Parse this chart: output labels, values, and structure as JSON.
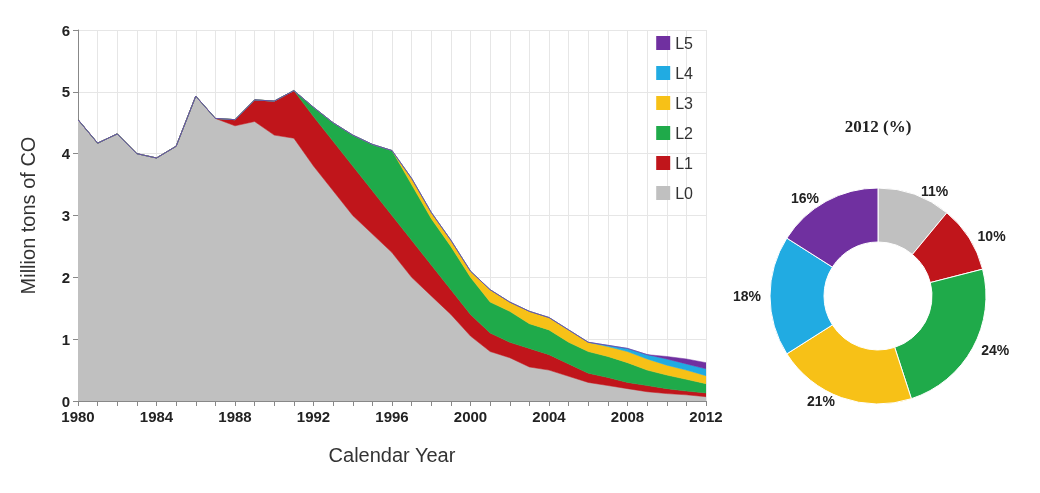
{
  "chart_data": [
    {
      "type": "area",
      "stacked": true,
      "xlabel": "Calendar Year",
      "ylabel": "Million tons of CO",
      "x": [
        1980,
        1981,
        1982,
        1983,
        1984,
        1985,
        1986,
        1987,
        1988,
        1989,
        1990,
        1991,
        1992,
        1993,
        1994,
        1995,
        1996,
        1997,
        1998,
        1999,
        2000,
        2001,
        2002,
        2003,
        2004,
        2005,
        2006,
        2007,
        2008,
        2009,
        2010,
        2011,
        2012
      ],
      "series": [
        {
          "name": "L0",
          "color": "#c0c0c0",
          "values": [
            4.55,
            4.17,
            4.32,
            4.0,
            3.93,
            4.12,
            4.93,
            4.57,
            4.45,
            4.52,
            4.3,
            4.25,
            3.8,
            3.4,
            3.0,
            2.7,
            2.4,
            2.0,
            1.7,
            1.4,
            1.05,
            0.8,
            0.7,
            0.55,
            0.5,
            0.4,
            0.3,
            0.25,
            0.2,
            0.15,
            0.12,
            0.1,
            0.07
          ]
        },
        {
          "name": "L1",
          "color": "#c0151b",
          "values": [
            0,
            0,
            0,
            0,
            0,
            0,
            0,
            0,
            0.1,
            0.35,
            0.55,
            0.77,
            0.8,
            0.8,
            0.8,
            0.7,
            0.6,
            0.6,
            0.5,
            0.4,
            0.35,
            0.3,
            0.25,
            0.3,
            0.25,
            0.2,
            0.15,
            0.13,
            0.1,
            0.1,
            0.08,
            0.06,
            0.06
          ]
        },
        {
          "name": "L2",
          "color": "#1faa4a",
          "values": [
            0,
            0,
            0,
            0,
            0,
            0,
            0,
            0,
            0,
            0,
            0,
            0,
            0.15,
            0.3,
            0.5,
            0.75,
            1.05,
            0.9,
            0.75,
            0.7,
            0.6,
            0.5,
            0.5,
            0.4,
            0.4,
            0.35,
            0.35,
            0.34,
            0.32,
            0.25,
            0.22,
            0.19,
            0.15
          ]
        },
        {
          "name": "L3",
          "color": "#f7c117",
          "values": [
            0,
            0,
            0,
            0,
            0,
            0,
            0,
            0,
            0,
            0,
            0,
            0,
            0,
            0,
            0,
            0,
            0,
            0.1,
            0.1,
            0.1,
            0.1,
            0.2,
            0.15,
            0.2,
            0.2,
            0.2,
            0.15,
            0.16,
            0.18,
            0.18,
            0.16,
            0.15,
            0.13
          ]
        },
        {
          "name": "L4",
          "color": "#21abe2",
          "values": [
            0,
            0,
            0,
            0,
            0,
            0,
            0,
            0,
            0,
            0,
            0,
            0,
            0,
            0,
            0,
            0,
            0,
            0,
            0,
            0,
            0,
            0,
            0,
            0,
            0,
            0,
            0,
            0.02,
            0.05,
            0.07,
            0.1,
            0.1,
            0.11
          ]
        },
        {
          "name": "L5",
          "color": "#7030a0",
          "values": [
            0,
            0,
            0,
            0,
            0,
            0,
            0,
            0,
            0,
            0,
            0,
            0,
            0,
            0,
            0,
            0,
            0,
            0,
            0,
            0,
            0,
            0,
            0,
            0,
            0,
            0,
            0,
            0,
            0,
            0,
            0.04,
            0.08,
            0.1
          ]
        }
      ],
      "xlim": [
        1980,
        2012
      ],
      "xticks": [
        1980,
        {
          "value": 1981,
          "label": null
        },
        {
          "value": 1982,
          "label": null
        },
        {
          "value": 1983,
          "label": null
        },
        1984,
        {
          "value": 1985,
          "label": null
        },
        {
          "value": 1986,
          "label": null
        },
        {
          "value": 1987,
          "label": null
        },
        1988,
        {
          "value": 1989,
          "label": null
        },
        {
          "value": 1990,
          "label": null
        },
        {
          "value": 1991,
          "label": null
        },
        1992,
        {
          "value": 1993,
          "label": null
        },
        {
          "value": 1994,
          "label": null
        },
        {
          "value": 1995,
          "label": null
        },
        1996,
        {
          "value": 1997,
          "label": null
        },
        {
          "value": 1998,
          "label": null
        },
        {
          "value": 1999,
          "label": null
        },
        2000,
        {
          "value": 2001,
          "label": null
        },
        {
          "value": 2002,
          "label": null
        },
        {
          "value": 2003,
          "label": null
        },
        2004,
        {
          "value": 2005,
          "label": null
        },
        {
          "value": 2006,
          "label": null
        },
        {
          "value": 2007,
          "label": null
        },
        2008,
        {
          "value": 2009,
          "label": null
        },
        {
          "value": 2010,
          "label": null
        },
        {
          "value": 2011,
          "label": null
        },
        2012
      ],
      "ylim": [
        0,
        6
      ],
      "yticks": [
        0,
        1,
        2,
        3,
        4,
        5,
        6
      ],
      "grid": true,
      "legend": "top right"
    },
    {
      "type": "donut",
      "title": "2012 (%)",
      "categories": [
        null,
        null,
        null,
        null,
        null,
        null
      ],
      "values": [
        11,
        10,
        24,
        21,
        18,
        16
      ],
      "value_labels": [
        "11%",
        "10%",
        "24%",
        "21%",
        "18%",
        "16%"
      ],
      "colors": [
        "#c0c0c0",
        "#c0151b",
        "#1faa4a",
        "#f7c117",
        "#21abe2",
        "#7030a0"
      ]
    }
  ]
}
